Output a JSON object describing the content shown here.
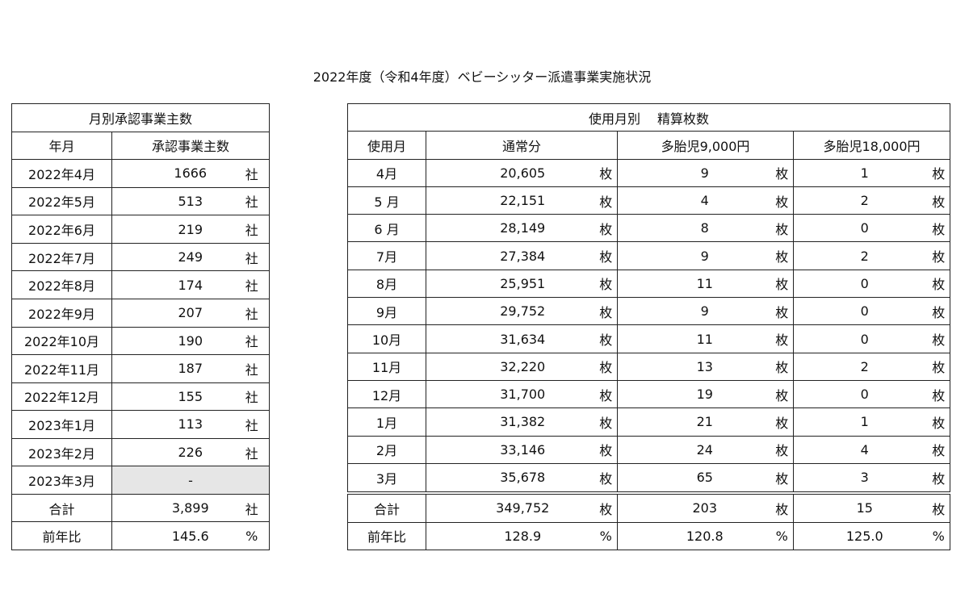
{
  "title": "2022年度（令和4年度）ベビーシッター派遣事業実施状況",
  "left_table": {
    "title": "月別承認事業主数",
    "columns": [
      "年月",
      "承認事業主数"
    ],
    "rows": [
      [
        "2022年4月",
        "1666",
        "社"
      ],
      [
        "2022年5月",
        "513",
        "社"
      ],
      [
        "2022年6月",
        "219",
        "社"
      ],
      [
        "2022年7月",
        "249",
        "社"
      ],
      [
        "2022年8月",
        "174",
        "社"
      ],
      [
        "2022年9月",
        "207",
        "社"
      ],
      [
        "2022年10月",
        "190",
        "社"
      ],
      [
        "2022年11月",
        "187",
        "社"
      ],
      [
        "2022年12月",
        "155",
        "社"
      ],
      [
        "2023年1月",
        "113",
        "社"
      ],
      [
        "2023年2月",
        "226",
        "社"
      ],
      [
        "2023年3月",
        "-"
      ],
      [
        "合計",
        "3,899",
        "社"
      ],
      [
        "前年比",
        "145.6",
        "%"
      ]
    ]
  },
  "right_table": {
    "title": "使用月別　 精算枚数",
    "columns": [
      "使用月",
      "通常分",
      "多胎児9,000円",
      "多胎児18,000円"
    ],
    "rows": [
      [
        "4月",
        "20,605",
        "枚",
        "9",
        "枚",
        "1",
        "枚"
      ],
      [
        "5 月",
        "22,151",
        "枚",
        "4",
        "枚",
        "2",
        "枚"
      ],
      [
        "6 月",
        "28,149",
        "枚",
        "8",
        "枚",
        "0",
        "枚"
      ],
      [
        "7月",
        "27,384",
        "枚",
        "9",
        "枚",
        "2",
        "枚"
      ],
      [
        "8月",
        "25,951",
        "枚",
        "11",
        "枚",
        "0",
        "枚"
      ],
      [
        "9月",
        "29,752",
        "枚",
        "9",
        "枚",
        "0",
        "枚"
      ],
      [
        "10月",
        "31,634",
        "枚",
        "11",
        "枚",
        "0",
        "枚"
      ],
      [
        "11月",
        "32,220",
        "枚",
        "13",
        "枚",
        "2",
        "枚"
      ],
      [
        "12月",
        "31,700",
        "枚",
        "19",
        "枚",
        "0",
        "枚"
      ],
      [
        "1月",
        "31,382",
        "枚",
        "21",
        "枚",
        "1",
        "枚"
      ],
      [
        "2月",
        "33,146",
        "枚",
        "24",
        "枚",
        "4",
        "枚"
      ],
      [
        "3月",
        "35,678",
        "枚",
        "65",
        "枚",
        "3",
        "枚"
      ],
      [
        "合計",
        "349,752",
        "枚",
        "203",
        "枚",
        "15",
        "枚"
      ],
      [
        "前年比",
        "128.9",
        "%",
        "120.8",
        "%",
        "125.0",
        "%"
      ]
    ]
  }
}
